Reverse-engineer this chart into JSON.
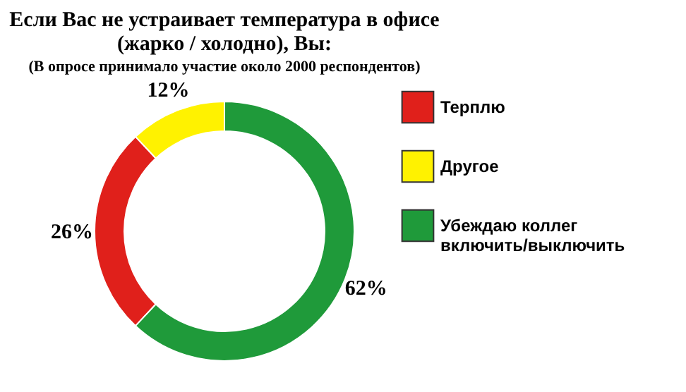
{
  "chart_data": {
    "type": "donut",
    "title": "Если Вас не устраивает температура в офисе\n(жарко / холодно), Вы:",
    "subtitle": "(В опросе принимало участие около 2000 респондентов)",
    "categories": [
      "Терплю",
      "Другое",
      "Убеждаю коллег включить/выключить"
    ],
    "values": [
      26,
      12,
      62
    ],
    "colors": [
      "#e0201b",
      "#fff200",
      "#1f9a3a"
    ],
    "value_labels": [
      "26%",
      "12%",
      "62%"
    ],
    "legend": "right"
  }
}
